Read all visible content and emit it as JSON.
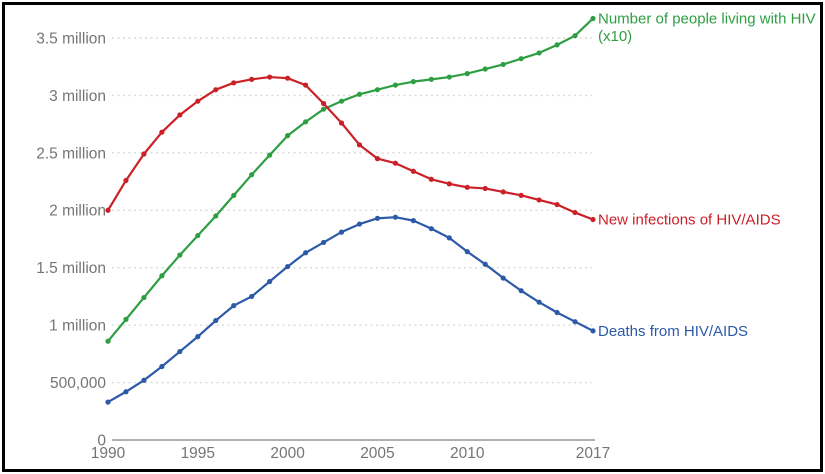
{
  "frame": {
    "border_color": "#000000",
    "background": "#ffffff"
  },
  "axis_style": {
    "tick_text_color": "#757575",
    "grid_color": "#d9d9d9",
    "axis_line_color": "#b0b0b0"
  },
  "chart_data": {
    "type": "line",
    "title": "",
    "xlabel": "",
    "ylabel": "",
    "grid": "horizontal-dotted",
    "legend_position": "right-of-line-end",
    "xlim": [
      1990,
      2017
    ],
    "ylim": [
      0,
      3.5
    ],
    "x": [
      1990,
      1991,
      1992,
      1993,
      1994,
      1995,
      1996,
      1997,
      1998,
      1999,
      2000,
      2001,
      2002,
      2003,
      2004,
      2005,
      2006,
      2007,
      2008,
      2009,
      2010,
      2011,
      2012,
      2013,
      2014,
      2015,
      2016,
      2017
    ],
    "series": [
      {
        "name": "Number of people living with HIV (x10)",
        "label_lines": [
          "Number of people living with HIV",
          "(x10)"
        ],
        "color": "#2f9e43",
        "values": [
          0.86,
          1.05,
          1.24,
          1.43,
          1.61,
          1.78,
          1.95,
          2.13,
          2.31,
          2.48,
          2.65,
          2.77,
          2.88,
          2.95,
          3.01,
          3.05,
          3.09,
          3.12,
          3.14,
          3.16,
          3.19,
          3.23,
          3.27,
          3.32,
          3.37,
          3.44,
          3.52,
          3.67
        ]
      },
      {
        "name": "New infections of HIV/AIDS",
        "label_lines": [
          "New infections of HIV/AIDS"
        ],
        "color": "#cb2027",
        "values": [
          2.0,
          2.26,
          2.49,
          2.68,
          2.83,
          2.95,
          3.05,
          3.11,
          3.14,
          3.16,
          3.15,
          3.09,
          2.93,
          2.76,
          2.57,
          2.45,
          2.41,
          2.34,
          2.27,
          2.23,
          2.2,
          2.19,
          2.16,
          2.13,
          2.09,
          2.05,
          1.98,
          1.92
        ]
      },
      {
        "name": "Deaths from HIV/AIDS",
        "label_lines": [
          "Deaths from HIV/AIDS"
        ],
        "color": "#2c5aa8",
        "values": [
          0.33,
          0.42,
          0.52,
          0.64,
          0.77,
          0.9,
          1.04,
          1.17,
          1.25,
          1.38,
          1.51,
          1.63,
          1.72,
          1.81,
          1.88,
          1.93,
          1.94,
          1.91,
          1.84,
          1.76,
          1.64,
          1.53,
          1.41,
          1.3,
          1.2,
          1.11,
          1.03,
          0.95
        ]
      }
    ],
    "yticks": [
      {
        "value": 0,
        "label": "0"
      },
      {
        "value": 0.5,
        "label": "500,000"
      },
      {
        "value": 1,
        "label": "1 million"
      },
      {
        "value": 1.5,
        "label": "1.5 million"
      },
      {
        "value": 2,
        "label": "2 million"
      },
      {
        "value": 2.5,
        "label": "2.5 million"
      },
      {
        "value": 3,
        "label": "3 million"
      },
      {
        "value": 3.5,
        "label": "3.5 million"
      }
    ],
    "xticks": [
      {
        "value": 1990,
        "label": "1990"
      },
      {
        "value": 1995,
        "label": "1995"
      },
      {
        "value": 2000,
        "label": "2000"
      },
      {
        "value": 2005,
        "label": "2005"
      },
      {
        "value": 2010,
        "label": "2010"
      },
      {
        "value": 2017,
        "label": "2017"
      }
    ]
  }
}
